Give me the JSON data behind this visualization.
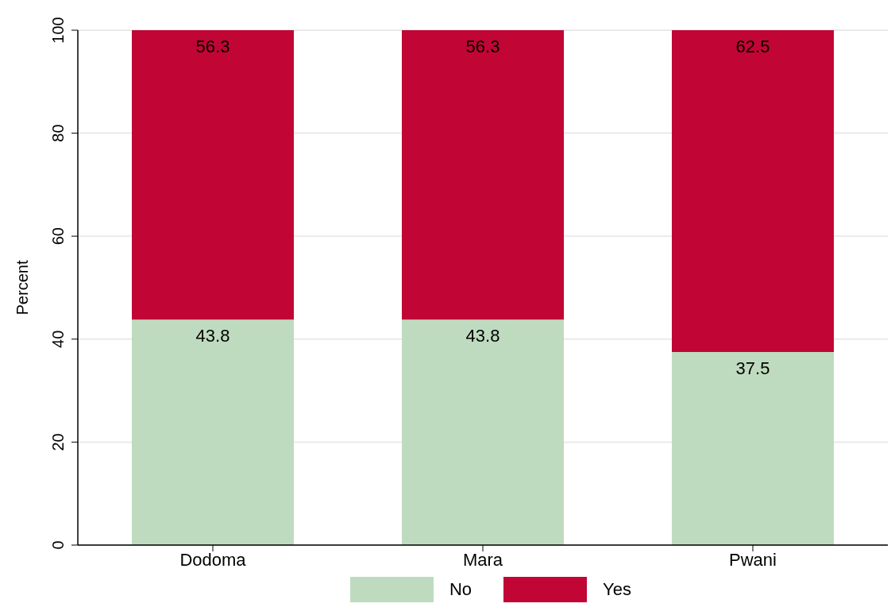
{
  "chart_data": {
    "type": "bar",
    "stacked": true,
    "ylabel": "Percent",
    "categories": [
      "Dodoma",
      "Mara",
      "Pwani"
    ],
    "series": [
      {
        "name": "No",
        "color": "#bedbbf",
        "values": [
          43.8,
          43.8,
          37.5
        ]
      },
      {
        "name": "Yes",
        "color": "#c10534",
        "values": [
          56.3,
          56.3,
          62.5
        ]
      }
    ],
    "ylim": [
      0,
      100
    ],
    "yticks": [
      0,
      20,
      40,
      60,
      80,
      100
    ],
    "grid": "y",
    "legend": "bottom",
    "data_labels": true
  }
}
